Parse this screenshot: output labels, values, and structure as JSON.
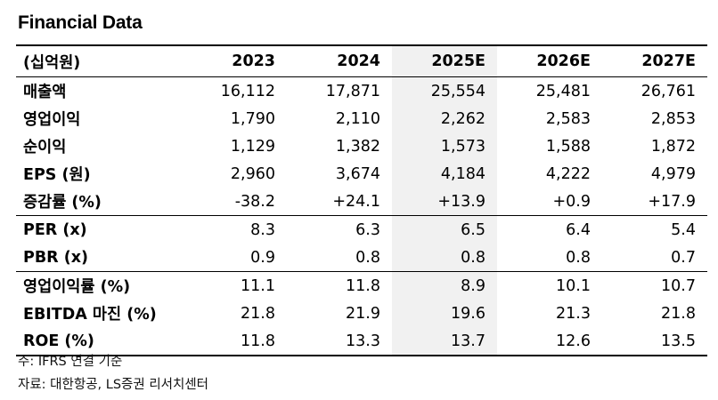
{
  "title": "Financial Data",
  "unit_label": "(십억원)",
  "years": [
    "2023",
    "2024",
    "2025E",
    "2026E",
    "2027E"
  ],
  "rows": [
    {
      "label": "매출액",
      "values": [
        "16,112",
        "17,871",
        "25,554",
        "25,481",
        "26,761"
      ]
    },
    {
      "label": "영업이익",
      "values": [
        "1,790",
        "2,110",
        "2,262",
        "2,583",
        "2,853"
      ]
    },
    {
      "label": "순이익",
      "values": [
        "1,129",
        "1,382",
        "1,573",
        "1,588",
        "1,872"
      ]
    },
    {
      "label": "EPS (원)",
      "values": [
        "2,960",
        "3,674",
        "4,184",
        "4,222",
        "4,979"
      ]
    },
    {
      "label": "증감률 (%)",
      "values": [
        "-38.2",
        "+24.1",
        "+13.9",
        "+0.9",
        "+17.9"
      ]
    },
    {
      "label": "PER (x)",
      "values": [
        "8.3",
        "6.3",
        "6.5",
        "6.4",
        "5.4"
      ]
    },
    {
      "label": "PBR (x)",
      "values": [
        "0.9",
        "0.8",
        "0.8",
        "0.8",
        "0.7"
      ]
    },
    {
      "label": "영업이익률 (%)",
      "values": [
        "11.1",
        "11.8",
        "8.9",
        "10.1",
        "10.7"
      ]
    },
    {
      "label": "EBITDA 마진 (%)",
      "values": [
        "21.8",
        "21.9",
        "19.6",
        "21.3",
        "21.8"
      ]
    },
    {
      "label": "ROE (%)",
      "values": [
        "11.8",
        "13.3",
        "13.7",
        "12.6",
        "13.5"
      ]
    }
  ],
  "footnote": "주: IFRS 연결 기준",
  "source": "자료: 대한항공, LS증권 리서치센터"
}
